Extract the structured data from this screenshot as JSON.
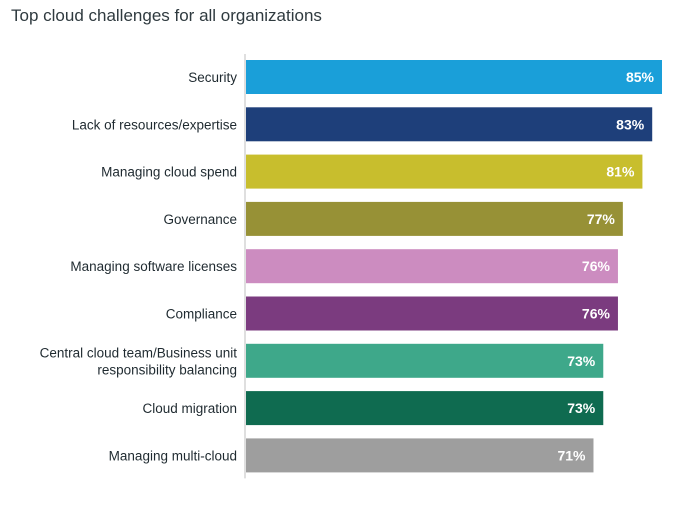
{
  "title": "Top cloud challenges for all organizations",
  "chart_data": {
    "type": "bar",
    "orientation": "horizontal",
    "title": "Top cloud challenges for all organizations",
    "categories": [
      [
        "Security"
      ],
      [
        "Lack of resources/expertise"
      ],
      [
        "Managing cloud spend"
      ],
      [
        "Governance"
      ],
      [
        "Managing software licenses"
      ],
      [
        "Compliance"
      ],
      [
        "Central cloud team/Business unit",
        "responsibility balancing"
      ],
      [
        "Cloud migration"
      ],
      [
        "Managing multi-cloud"
      ]
    ],
    "values": [
      85,
      83,
      81,
      77,
      76,
      76,
      73,
      73,
      71
    ],
    "value_labels": [
      "85%",
      "83%",
      "81%",
      "77%",
      "76%",
      "76%",
      "73%",
      "73%",
      "71%"
    ],
    "colors": [
      "#1a9fd9",
      "#1e3f7a",
      "#c8be2d",
      "#979136",
      "#cc8cc0",
      "#7b3b7f",
      "#3ea88a",
      "#0f6b50",
      "#9e9e9e"
    ],
    "xlim": [
      0,
      85
    ],
    "grid": false,
    "legend": "none"
  }
}
